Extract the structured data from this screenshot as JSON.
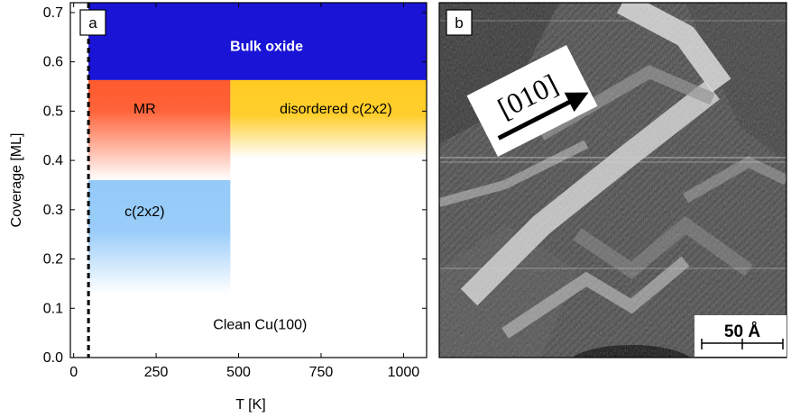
{
  "panels": {
    "a": {
      "label": "a"
    },
    "b": {
      "label": "b",
      "direction_label": "[010]",
      "scale_bar_label": "50 Å"
    }
  },
  "colors": {
    "bulk_oxide": "#1a14d6",
    "mr": "#ff5a2e",
    "disordered": "#ffcc22",
    "c2x2": "#88c4f8",
    "stm_background": "#4a4a4a"
  },
  "chart_data": {
    "type": "phase-diagram",
    "xlabel": "T [K]",
    "ylabel": "Coverage [ML]",
    "xlim": [
      -10,
      1070
    ],
    "ylim": [
      0,
      0.72
    ],
    "xticks": [
      0,
      250,
      500,
      750,
      1000
    ],
    "yticks": [
      0.0,
      0.1,
      0.2,
      0.3,
      0.4,
      0.5,
      0.6,
      0.7
    ],
    "ytick_labels": [
      "0.0",
      "0.1",
      "0.2",
      "0.3",
      "0.4",
      "0.5",
      "0.6",
      "0.7"
    ],
    "dashed_line_x": 45,
    "regions": [
      {
        "name": "Bulk oxide",
        "x": [
          45,
          1070
        ],
        "y": [
          0.563,
          0.72
        ],
        "style": "solid",
        "color": "#1a14d6",
        "label_color": "#ffffff",
        "label_bold": true
      },
      {
        "name": "MR",
        "x": [
          45,
          475
        ],
        "y": [
          0.36,
          0.563
        ],
        "style": "fade-down",
        "color": "#ff5a2e"
      },
      {
        "name": "c(2x2)",
        "x": [
          45,
          475
        ],
        "y": [
          0.13,
          0.36
        ],
        "style": "fade-down",
        "color": "#88c4f8"
      },
      {
        "name": "disordered c(2x2)",
        "x": [
          475,
          1070
        ],
        "y": [
          0.405,
          0.563
        ],
        "style": "fade-down",
        "color": "#ffcc22"
      },
      {
        "name": "Clean Cu(100)",
        "x": [
          45,
          1070
        ],
        "y": [
          0,
          0.13
        ],
        "style": "none",
        "color": "#ffffff"
      }
    ],
    "labels": [
      {
        "text": "Bulk oxide",
        "x": 585,
        "y": 0.63
      },
      {
        "text": "MR",
        "x": 215,
        "y": 0.503
      },
      {
        "text": "disordered c(2x2)",
        "x": 795,
        "y": 0.503
      },
      {
        "text": "c(2x2)",
        "x": 215,
        "y": 0.295
      },
      {
        "text": "Clean Cu(100)",
        "x": 565,
        "y": 0.065
      }
    ]
  }
}
